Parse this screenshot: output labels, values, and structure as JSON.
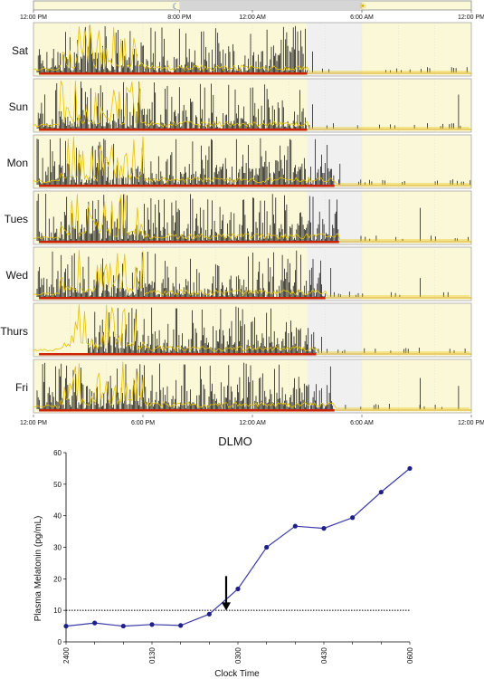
{
  "chart_data": [
    {
      "type": "area",
      "title": "",
      "top_bar_ticks": [
        "12:00 PM",
        "8:00 PM",
        "12:00 AM",
        "6:00 AM",
        "12:00 PM"
      ],
      "bottom_ticks": [
        "12:00 PM",
        "6:00 PM",
        "12:00 AM",
        "6:00 AM",
        "12:00 PM"
      ],
      "icons": [
        "moon-icon",
        "sun-icon"
      ],
      "rest_shading_color": "#f0f0f0",
      "light_shading_color": "#fbf8d8",
      "activity_color": "#000000",
      "light_trace_color": "#e6c200",
      "off_wrist_color": "#cc2200",
      "days": [
        {
          "label": "Sat",
          "sleep_onset": "3:00 AM",
          "wake": "6:00 AM",
          "active_until": "3:00 AM"
        },
        {
          "label": "Sun",
          "sleep_onset": "3:00 AM",
          "wake": "6:00 AM",
          "active_until": "3:00 AM"
        },
        {
          "label": "Mon",
          "sleep_onset": "3:00 AM",
          "wake": "6:00 AM",
          "active_until": "4:30 AM"
        },
        {
          "label": "Tues",
          "sleep_onset": "3:00 AM",
          "wake": "6:00 AM",
          "active_until": "4:45 AM"
        },
        {
          "label": "Wed",
          "sleep_onset": "3:00 AM",
          "wake": "6:00 AM",
          "active_until": "4:00 AM"
        },
        {
          "label": "Thurs",
          "sleep_onset": "3:00 AM",
          "wake": "6:00 AM",
          "active_until": "3:30 AM"
        },
        {
          "label": "Fri",
          "sleep_onset": "3:00 AM",
          "wake": "6:00 AM",
          "active_until": "4:30 AM"
        }
      ]
    },
    {
      "type": "line",
      "title": "DLMO",
      "xlabel": "Clock Time",
      "ylabel": "Plasma Melatonin (pg/mL)",
      "x_ticks": [
        "2400",
        "0130",
        "0300",
        "0430",
        "0600"
      ],
      "ylim": [
        0,
        60
      ],
      "y_ticks": [
        0,
        10,
        20,
        30,
        40,
        50,
        60
      ],
      "threshold": 10,
      "arrow_at_x": 6,
      "x": [
        0,
        1,
        2,
        3,
        4,
        5,
        6,
        7,
        8,
        9,
        10,
        11,
        12
      ],
      "values": [
        5,
        6,
        5,
        5.5,
        5.2,
        8.8,
        16.8,
        30,
        36.7,
        36,
        39.4,
        47.5,
        55
      ],
      "line_color": "#3a3aa8",
      "marker_color": "#1f1f8a"
    }
  ]
}
